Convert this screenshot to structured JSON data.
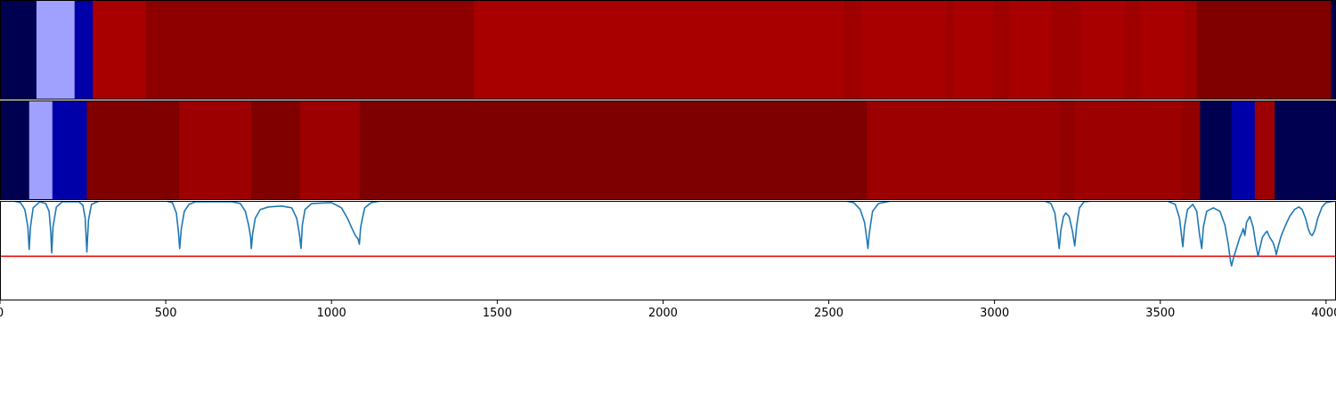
{
  "chart_data": [
    {
      "type": "heatmap",
      "colormap": "seismic",
      "xlim": [
        0,
        4030
      ],
      "segments": [
        {
          "start": 0,
          "end": 110,
          "color": "#000050"
        },
        {
          "start": 110,
          "end": 225,
          "color": "#a0a0ff"
        },
        {
          "start": 225,
          "end": 280,
          "color": "#0000a8"
        },
        {
          "start": 280,
          "end": 440,
          "color": "#a80000"
        },
        {
          "start": 440,
          "end": 1430,
          "color": "#8e0000"
        },
        {
          "start": 1430,
          "end": 2545,
          "color": "#a80000"
        },
        {
          "start": 2545,
          "end": 2600,
          "color": "#9e0000"
        },
        {
          "start": 2600,
          "end": 2855,
          "color": "#a80000"
        },
        {
          "start": 2855,
          "end": 2875,
          "color": "#9e0000"
        },
        {
          "start": 2875,
          "end": 2995,
          "color": "#a80000"
        },
        {
          "start": 2995,
          "end": 3045,
          "color": "#9e0000"
        },
        {
          "start": 3045,
          "end": 3170,
          "color": "#a80000"
        },
        {
          "start": 3170,
          "end": 3260,
          "color": "#9e0000"
        },
        {
          "start": 3260,
          "end": 3395,
          "color": "#a80000"
        },
        {
          "start": 3395,
          "end": 3440,
          "color": "#9e0000"
        },
        {
          "start": 3440,
          "end": 3570,
          "color": "#a80000"
        },
        {
          "start": 3570,
          "end": 3610,
          "color": "#9e0000"
        },
        {
          "start": 3610,
          "end": 4015,
          "color": "#800000"
        },
        {
          "start": 4015,
          "end": 4030,
          "color": "#000050"
        }
      ]
    },
    {
      "type": "heatmap",
      "colormap": "seismic",
      "xlim": [
        0,
        4030
      ],
      "segments": [
        {
          "start": 0,
          "end": 88,
          "color": "#000050"
        },
        {
          "start": 88,
          "end": 158,
          "color": "#a0a0ff"
        },
        {
          "start": 158,
          "end": 262,
          "color": "#0000a8"
        },
        {
          "start": 262,
          "end": 540,
          "color": "#800000"
        },
        {
          "start": 540,
          "end": 758,
          "color": "#9c0000"
        },
        {
          "start": 758,
          "end": 905,
          "color": "#800000"
        },
        {
          "start": 905,
          "end": 1085,
          "color": "#9c0000"
        },
        {
          "start": 1085,
          "end": 2615,
          "color": "#7e0000"
        },
        {
          "start": 2615,
          "end": 3195,
          "color": "#9c0000"
        },
        {
          "start": 3195,
          "end": 3240,
          "color": "#920000"
        },
        {
          "start": 3240,
          "end": 3565,
          "color": "#9c0000"
        },
        {
          "start": 3565,
          "end": 3620,
          "color": "#920000"
        },
        {
          "start": 3620,
          "end": 3715,
          "color": "#000050"
        },
        {
          "start": 3715,
          "end": 3785,
          "color": "#0000a8"
        },
        {
          "start": 3785,
          "end": 3845,
          "color": "#9c0000"
        },
        {
          "start": 3845,
          "end": 4030,
          "color": "#000050"
        }
      ]
    },
    {
      "type": "line",
      "xlim": [
        0,
        4030
      ],
      "ylim": [
        -0.15,
        1.0
      ],
      "xticks": [
        "0",
        "500",
        "1000",
        "1500",
        "2000",
        "2500",
        "3000",
        "3500",
        "4000"
      ],
      "xtick_values": [
        0,
        500,
        1000,
        1500,
        2000,
        2500,
        3000,
        3500,
        4000
      ],
      "baseline": 1.0,
      "threshold": 0.36,
      "series_color": "#1f77b4",
      "threshold_color": "#e81010",
      "dips": [
        {
          "center": 88,
          "depth": 0.56,
          "width": 5
        },
        {
          "center": 156,
          "depth": 0.6,
          "width": 5
        },
        {
          "center": 262,
          "depth": 0.59,
          "width": 5
        },
        {
          "center": 542,
          "depth": 0.55,
          "width": 6
        },
        {
          "center": 758,
          "depth": 0.55,
          "width": 6
        },
        {
          "center": 908,
          "depth": 0.55,
          "width": 5
        },
        {
          "center": 1082,
          "depth": 0.5,
          "width": 6
        },
        {
          "center": 2618,
          "depth": 0.55,
          "width": 7
        },
        {
          "center": 3195,
          "depth": 0.55,
          "width": 5
        },
        {
          "center": 3242,
          "depth": 0.52,
          "width": 5
        },
        {
          "center": 3568,
          "depth": 0.53,
          "width": 5
        },
        {
          "center": 3625,
          "depth": 0.55,
          "width": 5
        },
        {
          "center": 3715,
          "depth": 0.75,
          "width": 4
        },
        {
          "center": 3795,
          "depth": 0.64,
          "width": 5
        },
        {
          "center": 3850,
          "depth": 0.62,
          "width": 6
        },
        {
          "center": 3955,
          "depth": 0.4,
          "width": 10
        }
      ],
      "points": [
        [
          0,
          1.0
        ],
        [
          40,
          1.0
        ],
        [
          62,
          0.98
        ],
        [
          75,
          0.9
        ],
        [
          84,
          0.7
        ],
        [
          88,
          0.44
        ],
        [
          92,
          0.7
        ],
        [
          100,
          0.92
        ],
        [
          120,
          0.99
        ],
        [
          138,
          0.97
        ],
        [
          148,
          0.88
        ],
        [
          153,
          0.65
        ],
        [
          156,
          0.4
        ],
        [
          160,
          0.7
        ],
        [
          170,
          0.93
        ],
        [
          188,
          0.99
        ],
        [
          238,
          0.99
        ],
        [
          250,
          0.95
        ],
        [
          257,
          0.8
        ],
        [
          262,
          0.41
        ],
        [
          267,
          0.78
        ],
        [
          276,
          0.96
        ],
        [
          300,
          1.0
        ],
        [
          500,
          1.0
        ],
        [
          520,
          0.98
        ],
        [
          532,
          0.86
        ],
        [
          538,
          0.65
        ],
        [
          542,
          0.45
        ],
        [
          547,
          0.68
        ],
        [
          556,
          0.88
        ],
        [
          570,
          0.96
        ],
        [
          590,
          0.99
        ],
        [
          700,
          0.99
        ],
        [
          725,
          0.97
        ],
        [
          740,
          0.88
        ],
        [
          750,
          0.72
        ],
        [
          756,
          0.58
        ],
        [
          758,
          0.45
        ],
        [
          762,
          0.62
        ],
        [
          770,
          0.8
        ],
        [
          785,
          0.9
        ],
        [
          810,
          0.93
        ],
        [
          850,
          0.94
        ],
        [
          880,
          0.92
        ],
        [
          895,
          0.8
        ],
        [
          903,
          0.62
        ],
        [
          908,
          0.45
        ],
        [
          912,
          0.72
        ],
        [
          920,
          0.9
        ],
        [
          940,
          0.97
        ],
        [
          1000,
          0.98
        ],
        [
          1030,
          0.92
        ],
        [
          1048,
          0.8
        ],
        [
          1062,
          0.68
        ],
        [
          1072,
          0.6
        ],
        [
          1080,
          0.56
        ],
        [
          1084,
          0.5
        ],
        [
          1088,
          0.7
        ],
        [
          1100,
          0.92
        ],
        [
          1120,
          0.98
        ],
        [
          1150,
          1.0
        ],
        [
          2550,
          1.0
        ],
        [
          2575,
          0.98
        ],
        [
          2595,
          0.9
        ],
        [
          2608,
          0.75
        ],
        [
          2615,
          0.55
        ],
        [
          2618,
          0.45
        ],
        [
          2622,
          0.62
        ],
        [
          2632,
          0.88
        ],
        [
          2650,
          0.97
        ],
        [
          2690,
          1.0
        ],
        [
          3150,
          1.0
        ],
        [
          3170,
          0.97
        ],
        [
          3182,
          0.86
        ],
        [
          3190,
          0.62
        ],
        [
          3195,
          0.45
        ],
        [
          3200,
          0.66
        ],
        [
          3208,
          0.82
        ],
        [
          3215,
          0.86
        ],
        [
          3225,
          0.82
        ],
        [
          3235,
          0.65
        ],
        [
          3242,
          0.48
        ],
        [
          3248,
          0.72
        ],
        [
          3256,
          0.92
        ],
        [
          3270,
          0.99
        ],
        [
          3300,
          1.0
        ],
        [
          3520,
          1.0
        ],
        [
          3545,
          0.96
        ],
        [
          3558,
          0.8
        ],
        [
          3564,
          0.6
        ],
        [
          3568,
          0.47
        ],
        [
          3573,
          0.7
        ],
        [
          3582,
          0.9
        ],
        [
          3598,
          0.96
        ],
        [
          3610,
          0.88
        ],
        [
          3618,
          0.62
        ],
        [
          3625,
          0.45
        ],
        [
          3630,
          0.7
        ],
        [
          3640,
          0.88
        ],
        [
          3660,
          0.92
        ],
        [
          3680,
          0.88
        ],
        [
          3695,
          0.72
        ],
        [
          3705,
          0.5
        ],
        [
          3712,
          0.3
        ],
        [
          3715,
          0.25
        ],
        [
          3720,
          0.33
        ],
        [
          3732,
          0.48
        ],
        [
          3740,
          0.58
        ],
        [
          3745,
          0.62
        ],
        [
          3750,
          0.68
        ],
        [
          3755,
          0.6
        ],
        [
          3760,
          0.75
        ],
        [
          3770,
          0.82
        ],
        [
          3780,
          0.7
        ],
        [
          3788,
          0.5
        ],
        [
          3795,
          0.36
        ],
        [
          3800,
          0.45
        ],
        [
          3808,
          0.58
        ],
        [
          3815,
          0.62
        ],
        [
          3822,
          0.65
        ],
        [
          3830,
          0.58
        ],
        [
          3840,
          0.52
        ],
        [
          3846,
          0.45
        ],
        [
          3850,
          0.38
        ],
        [
          3856,
          0.48
        ],
        [
          3865,
          0.6
        ],
        [
          3878,
          0.72
        ],
        [
          3890,
          0.82
        ],
        [
          3905,
          0.9
        ],
        [
          3918,
          0.93
        ],
        [
          3928,
          0.9
        ],
        [
          3938,
          0.8
        ],
        [
          3946,
          0.68
        ],
        [
          3952,
          0.62
        ],
        [
          3958,
          0.6
        ],
        [
          3966,
          0.66
        ],
        [
          3975,
          0.8
        ],
        [
          3988,
          0.93
        ],
        [
          4000,
          0.98
        ],
        [
          4030,
          1.0
        ]
      ]
    }
  ]
}
